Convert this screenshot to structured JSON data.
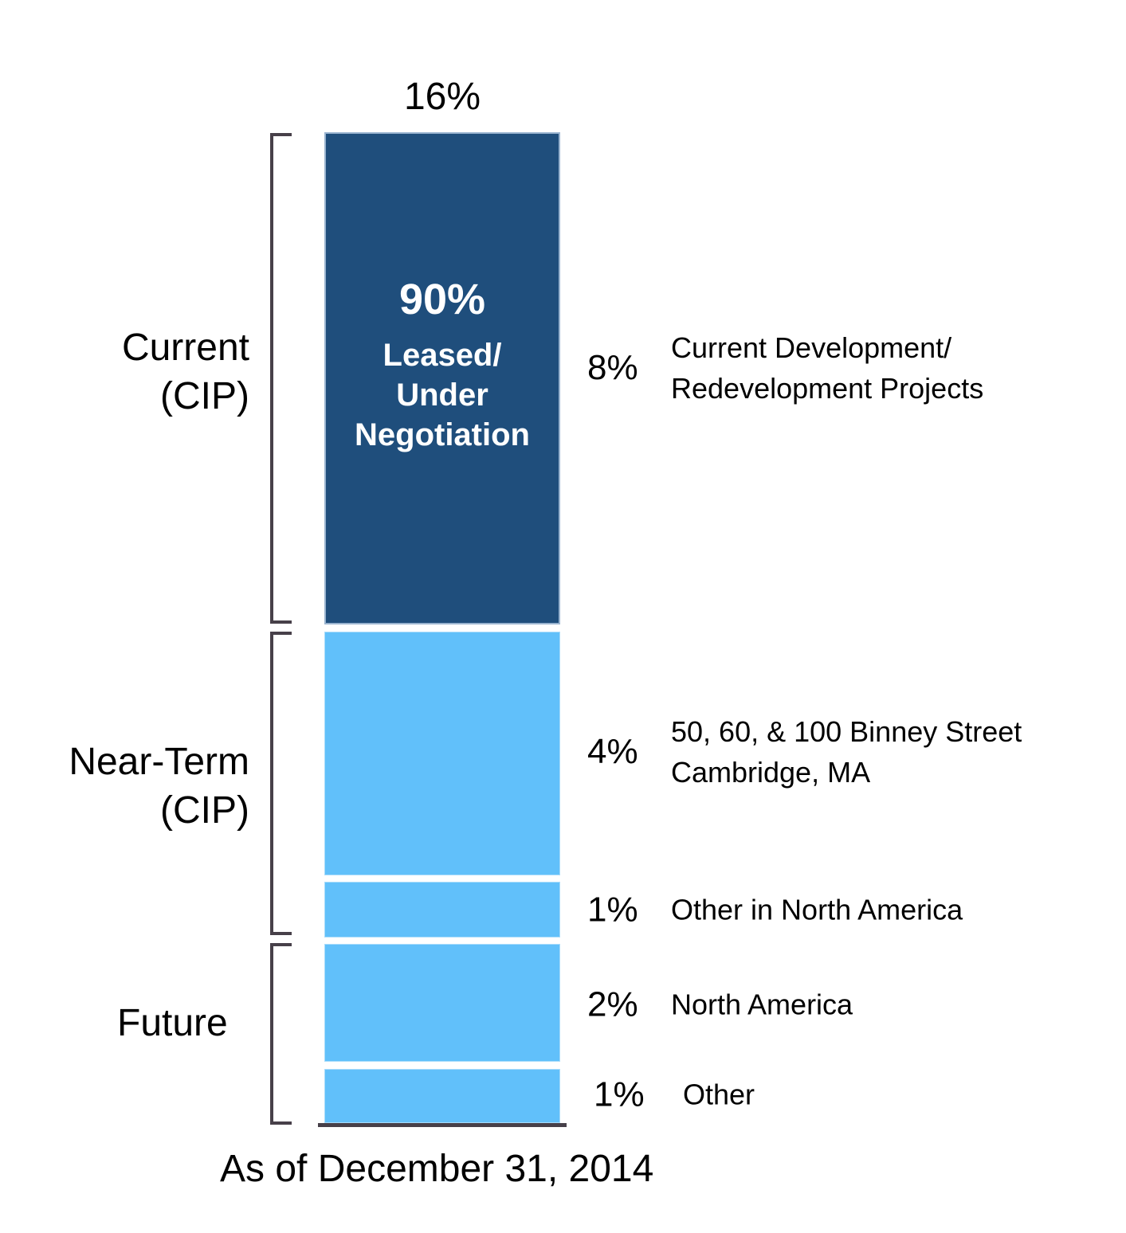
{
  "chart": {
    "total_label": "16%",
    "bar_annotation": {
      "pct": "90%",
      "line1": "Leased/",
      "line2": "Under",
      "line3": "Negotiation"
    },
    "groups": [
      {
        "line1": "Current",
        "line2": "(CIP)"
      },
      {
        "line1": "Near-Term",
        "line2": "(CIP)"
      },
      {
        "line1": "Future"
      }
    ],
    "rows": [
      {
        "pct": "8%",
        "desc_line1": "Current Development/",
        "desc_line2": "Redevelopment Projects"
      },
      {
        "pct": "4%",
        "desc_line1": "50, 60, & 100 Binney Street",
        "desc_line2": "Cambridge, MA"
      },
      {
        "pct": "1%",
        "desc_line1": "Other in North America"
      },
      {
        "pct": "2%",
        "desc_line1": "North America"
      },
      {
        "pct": "1%",
        "desc_line1": "Other"
      }
    ],
    "footnote": "As of December 31, 2014",
    "colors": {
      "dark_blue": "#1F4E7C",
      "light_blue": "#61C0FA",
      "bracket_gray": "#474049",
      "bar_text": "#FFFFFF",
      "label_text": "#000000"
    }
  },
  "chart_data": {
    "type": "bar",
    "subtype": "single-stacked-vertical-bar",
    "unit": "%",
    "total": {
      "value": 16,
      "label": "16%"
    },
    "segments": [
      {
        "group": "Current (CIP)",
        "value": 8,
        "label": "8%",
        "description": "Current Development/ Redevelopment Projects",
        "color": "#1F4E7C",
        "annotation": "90% Leased/ Under Negotiation"
      },
      {
        "group": "Near-Term (CIP)",
        "value": 4,
        "label": "4%",
        "description": "50, 60, & 100 Binney Street Cambridge, MA",
        "color": "#61C0FA"
      },
      {
        "group": "Near-Term (CIP)",
        "value": 1,
        "label": "1%",
        "description": "Other in North America",
        "color": "#61C0FA"
      },
      {
        "group": "Future",
        "value": 2,
        "label": "2%",
        "description": "North America",
        "color": "#61C0FA"
      },
      {
        "group": "Future",
        "value": 1,
        "label": "1%",
        "description": "Other",
        "color": "#61C0FA"
      }
    ],
    "group_brackets": [
      {
        "label": "Current (CIP)",
        "covers_values": [
          8
        ]
      },
      {
        "label": "Near-Term (CIP)",
        "covers_values": [
          4,
          1
        ]
      },
      {
        "label": "Future",
        "covers_values": [
          2,
          1
        ]
      }
    ],
    "axis": "none",
    "grid": false,
    "legend": "none",
    "footnote": "As of December 31, 2014"
  }
}
